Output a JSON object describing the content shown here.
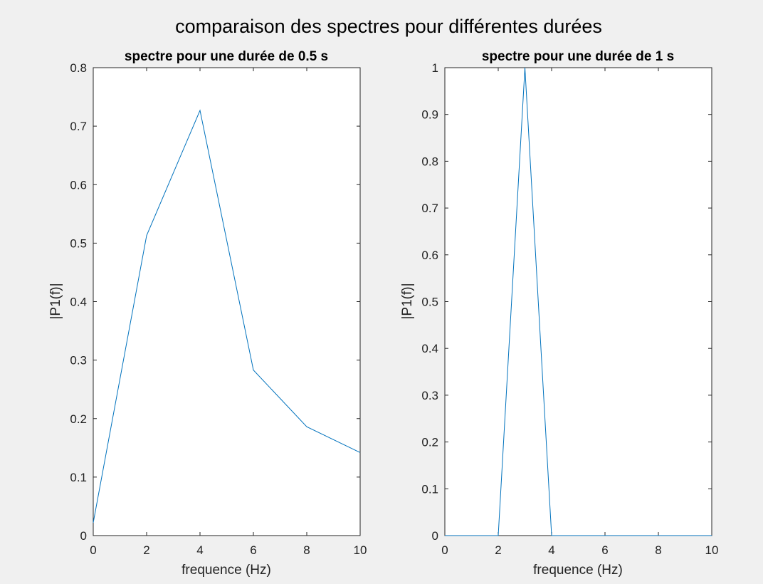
{
  "figure": {
    "suptitle": "comparaison des spectres pour différentes durées",
    "background": "#f0f0f0",
    "line_color": "#0072BD"
  },
  "chart_data": [
    {
      "type": "line",
      "title": "spectre pour une durée de 0.5 s",
      "xlabel": "frequence (Hz)",
      "ylabel": "|P1(f)|",
      "xlim": [
        0,
        10
      ],
      "ylim": [
        0,
        0.8
      ],
      "xticks": [
        "0",
        "2",
        "4",
        "6",
        "8",
        "10"
      ],
      "yticks": [
        "0",
        "0.1",
        "0.2",
        "0.3",
        "0.4",
        "0.5",
        "0.6",
        "0.7",
        "0.8"
      ],
      "grid": false,
      "x": [
        0,
        2,
        4,
        6,
        8,
        10
      ],
      "y": [
        0.022,
        0.513,
        0.727,
        0.283,
        0.186,
        0.142
      ]
    },
    {
      "type": "line",
      "title": "spectre pour une durée de 1 s",
      "xlabel": "frequence (Hz)",
      "ylabel": "|P1(f)|",
      "xlim": [
        0,
        10
      ],
      "ylim": [
        0,
        1
      ],
      "xticks": [
        "0",
        "2",
        "4",
        "6",
        "8",
        "10"
      ],
      "yticks": [
        "0",
        "0.1",
        "0.2",
        "0.3",
        "0.4",
        "0.5",
        "0.6",
        "0.7",
        "0.8",
        "0.9",
        "1"
      ],
      "grid": false,
      "x": [
        0,
        1,
        2,
        3,
        4,
        5,
        6,
        7,
        8,
        9,
        10
      ],
      "y": [
        0,
        0,
        0,
        1,
        0,
        0,
        0,
        0,
        0,
        0,
        0
      ]
    }
  ]
}
